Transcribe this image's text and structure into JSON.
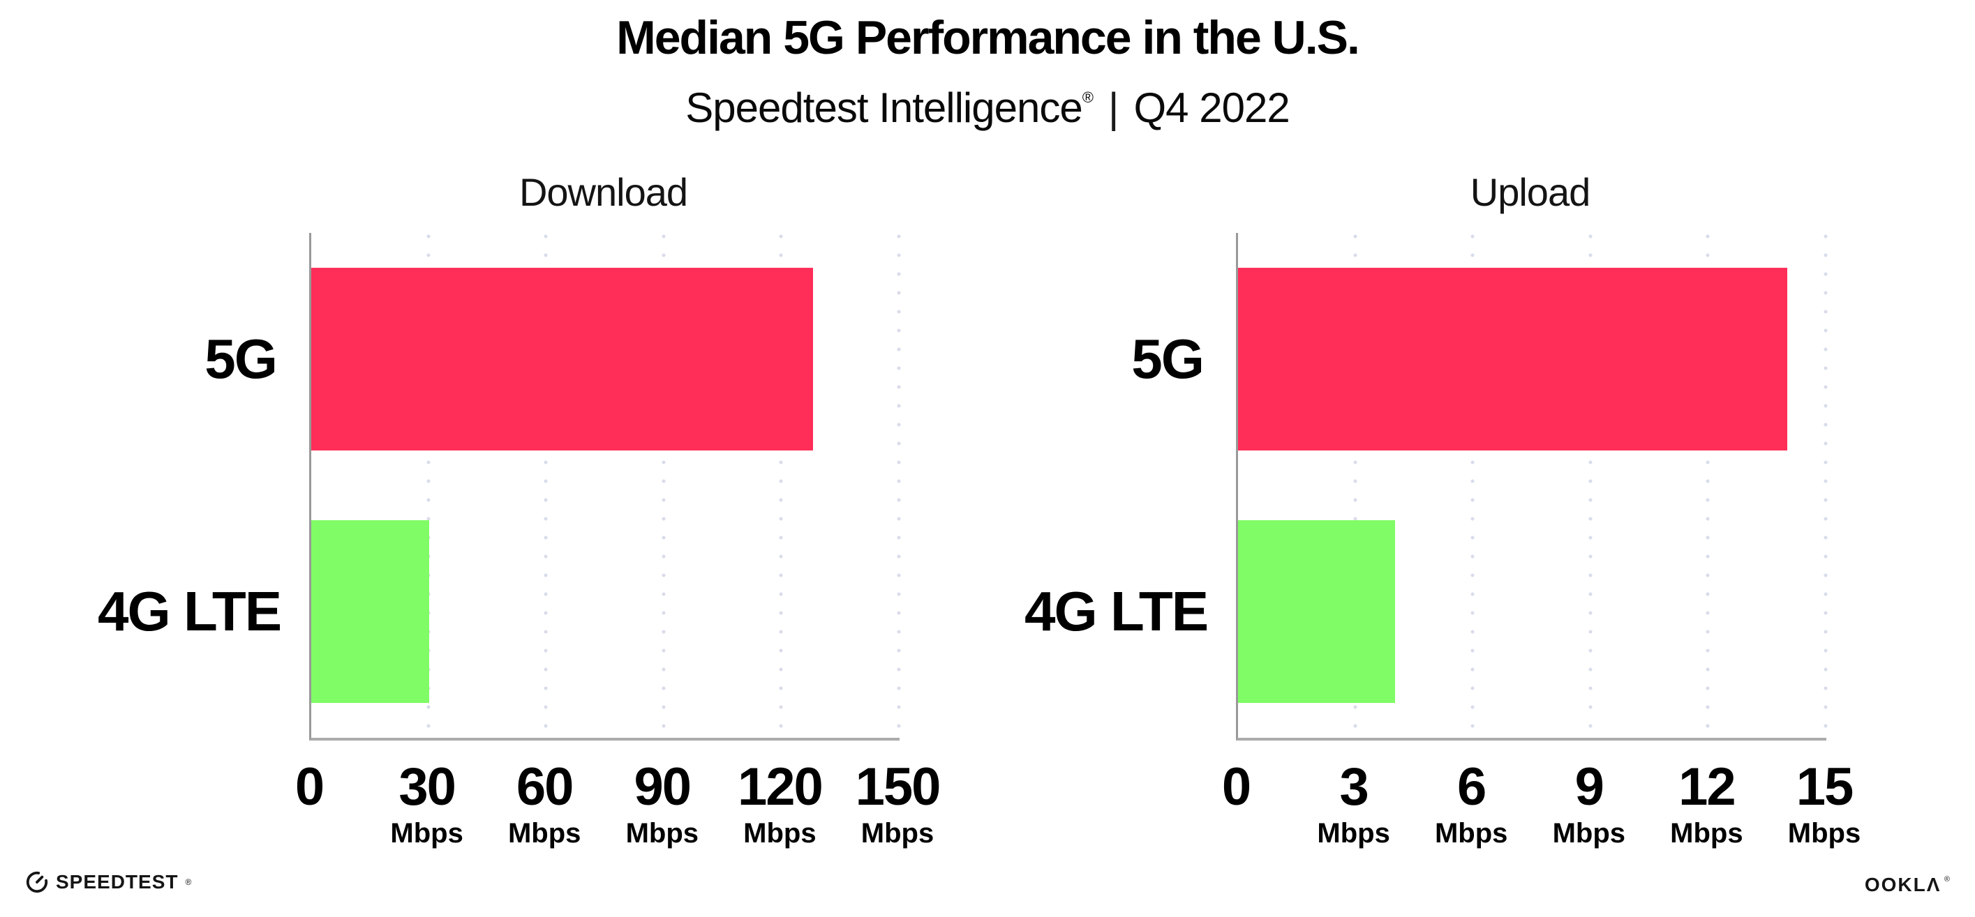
{
  "header": {
    "title": "Median 5G Performance in the U.S.",
    "subtitle": {
      "brand": "Speedtest Intelligence",
      "reg_mark": "®",
      "separator": "|",
      "period": "Q4 2022"
    }
  },
  "chart_data": [
    {
      "type": "bar",
      "orientation": "horizontal",
      "title": "Download",
      "categories": [
        "5G",
        "4G LTE"
      ],
      "values": [
        128,
        30
      ],
      "unit": "Mbps",
      "xlim": [
        0,
        150
      ],
      "xticks": [
        0,
        30,
        60,
        90,
        120,
        150
      ],
      "xtick_unit": "Mbps",
      "bar_colors": [
        "#ff2e59",
        "#80fc66"
      ],
      "grid": "dotted-vertical",
      "legend_position": "none"
    },
    {
      "type": "bar",
      "orientation": "horizontal",
      "title": "Upload",
      "categories": [
        "5G",
        "4G LTE"
      ],
      "values": [
        14,
        4
      ],
      "unit": "Mbps",
      "xlim": [
        0,
        15
      ],
      "xticks": [
        0,
        3,
        6,
        9,
        12,
        15
      ],
      "xtick_unit": "Mbps",
      "bar_colors": [
        "#ff2e59",
        "#80fc66"
      ],
      "grid": "dotted-vertical",
      "legend_position": "none"
    }
  ],
  "footer": {
    "speedtest": {
      "text": "SPEEDTEST",
      "mark": "®",
      "icon": "speedtest-gauge-icon"
    },
    "ookla": {
      "text": "OOKLA",
      "display": "OOKLΛ",
      "mark": "®"
    }
  },
  "colors": {
    "bar_5g": "#ff2e59",
    "bar_4g_lte": "#80fc66",
    "gridline_dots": "#d9dcea",
    "axis_line": "#ababab",
    "text": "#000000",
    "background": "#ffffff"
  }
}
